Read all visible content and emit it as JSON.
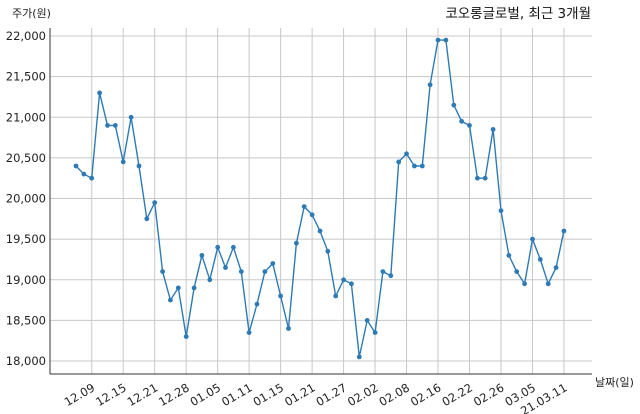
{
  "chart_data": {
    "type": "line",
    "title": "코오롱글로벌, 최근 3개월",
    "ylabel": "주가(원)",
    "xlabel": "날짜(일)",
    "ylim": [
      17850,
      22050
    ],
    "yticks": [
      18000,
      18500,
      19000,
      19500,
      20000,
      20500,
      21000,
      21500,
      22000
    ],
    "xtick_labels": [
      "12.09",
      "12.15",
      "12.21",
      "12.28",
      "01.05",
      "01.11",
      "01.15",
      "01.21",
      "01.27",
      "02.02",
      "02.08",
      "02.16",
      "02.22",
      "02.26",
      "03.05",
      "21.03.11"
    ],
    "xtick_indices": [
      2,
      6,
      10,
      14,
      18,
      22,
      26,
      30,
      34,
      38,
      42,
      46,
      50,
      54,
      58,
      62
    ],
    "grid": true,
    "line_color": "#2e7ab5",
    "series": [
      {
        "values": [
          20400,
          20300,
          20250,
          21300,
          20900,
          20900,
          20450,
          21000,
          20400,
          19750,
          19950,
          19100,
          18750,
          18900,
          18300,
          18900,
          19300,
          19000,
          19400,
          19150,
          19400,
          19100,
          18350,
          18700,
          19100,
          19200,
          18800,
          18400,
          19450,
          19900,
          19800,
          19600,
          19350,
          18800,
          19000,
          18950,
          18050,
          18500,
          18350,
          19100,
          19050,
          20450,
          20550,
          20400,
          20400,
          21400,
          21950,
          21950,
          21150,
          20950,
          20900,
          20250,
          20250,
          20850,
          19850,
          19300,
          19100,
          18950,
          19500,
          19250,
          18950,
          19150,
          19600
        ]
      }
    ]
  }
}
